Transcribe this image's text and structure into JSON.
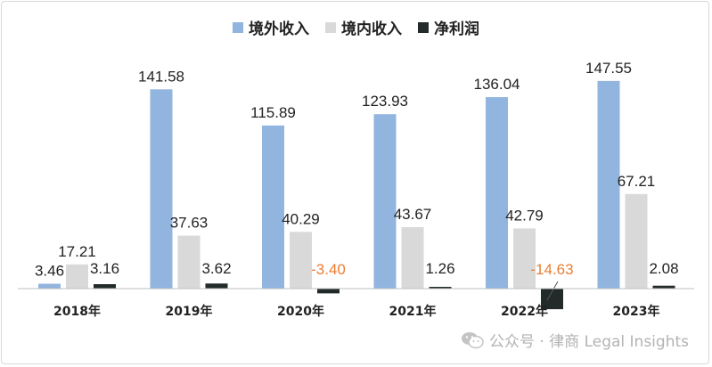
{
  "chart_data": {
    "type": "bar",
    "categories": [
      "2018年",
      "2019年",
      "2020年",
      "2021年",
      "2022年",
      "2023年"
    ],
    "series": [
      {
        "name": "境外收入",
        "color": "#92b5e0",
        "values": [
          3.46,
          141.58,
          115.89,
          123.93,
          136.04,
          147.55
        ]
      },
      {
        "name": "境内收入",
        "color": "#d9d9d9",
        "values": [
          17.21,
          37.63,
          40.29,
          43.67,
          42.79,
          67.21
        ]
      },
      {
        "name": "净利润",
        "color": "#222a2a",
        "values": [
          3.16,
          3.62,
          -3.4,
          1.26,
          -14.63,
          2.08
        ]
      }
    ],
    "negative_label_color": "#ed7d31",
    "legend_position": "top-center",
    "grid": false
  },
  "watermark": {
    "text": "公众号 · 律商 Legal Insights",
    "icon": "wechat-icon"
  }
}
